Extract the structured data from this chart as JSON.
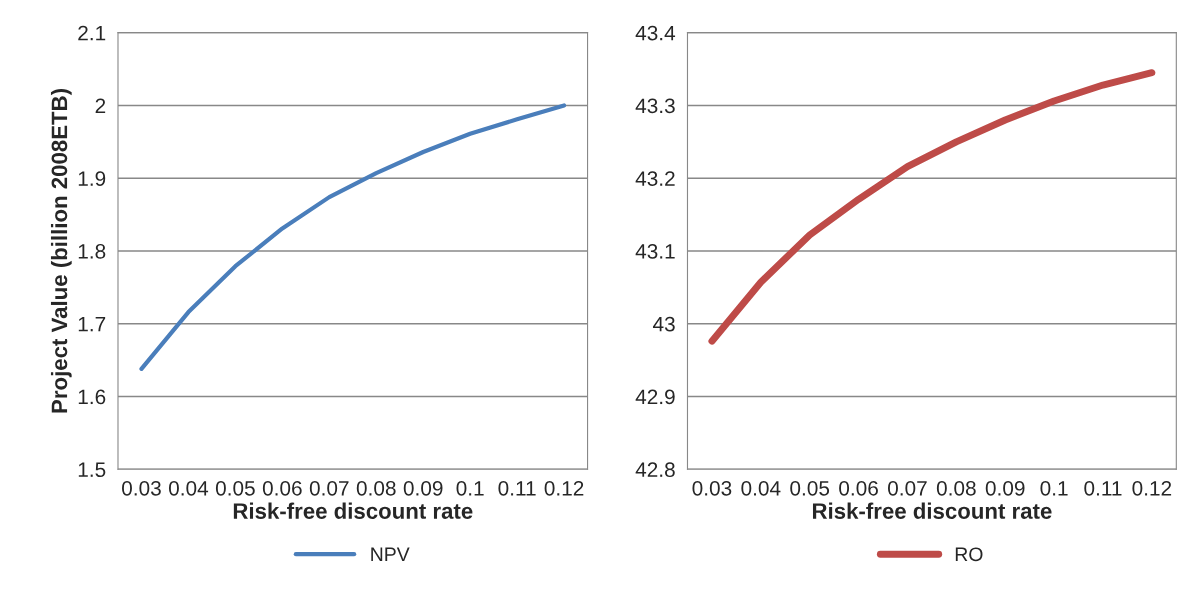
{
  "chart_data": [
    {
      "type": "line",
      "ylabel": "Project Value (billion 2008ETB)",
      "xlabel": "Risk-free discount rate",
      "categories": [
        "0.03",
        "0.04",
        "0.05",
        "0.06",
        "0.07",
        "0.08",
        "0.09",
        "0.1",
        "0.11",
        "0.12"
      ],
      "series": [
        {
          "name": "NPV",
          "color": "#4a7ebb",
          "values": [
            1.638,
            1.716,
            1.779,
            1.831,
            1.874,
            1.907,
            1.936,
            1.961,
            1.981,
            2.0
          ]
        }
      ],
      "ylim": [
        1.5,
        2.1
      ],
      "yticks": [
        1.5,
        1.6,
        1.7,
        1.8,
        1.9,
        2,
        2.1
      ],
      "grid": "y",
      "legend": "bottom"
    },
    {
      "type": "line",
      "xlabel": "Risk-free discount rate",
      "categories": [
        "0.03",
        "0.04",
        "0.05",
        "0.06",
        "0.07",
        "0.08",
        "0.09",
        "0.1",
        "0.11",
        "0.12"
      ],
      "series": [
        {
          "name": "RO",
          "color": "#be4b48",
          "values": [
            42.976,
            43.057,
            43.122,
            43.171,
            43.216,
            43.25,
            43.28,
            43.306,
            43.328,
            43.345
          ]
        }
      ],
      "ylim": [
        42.8,
        43.4
      ],
      "yticks": [
        42.8,
        42.9,
        43,
        43.1,
        43.2,
        43.3,
        43.4
      ],
      "grid": "y",
      "legend": "bottom"
    }
  ]
}
